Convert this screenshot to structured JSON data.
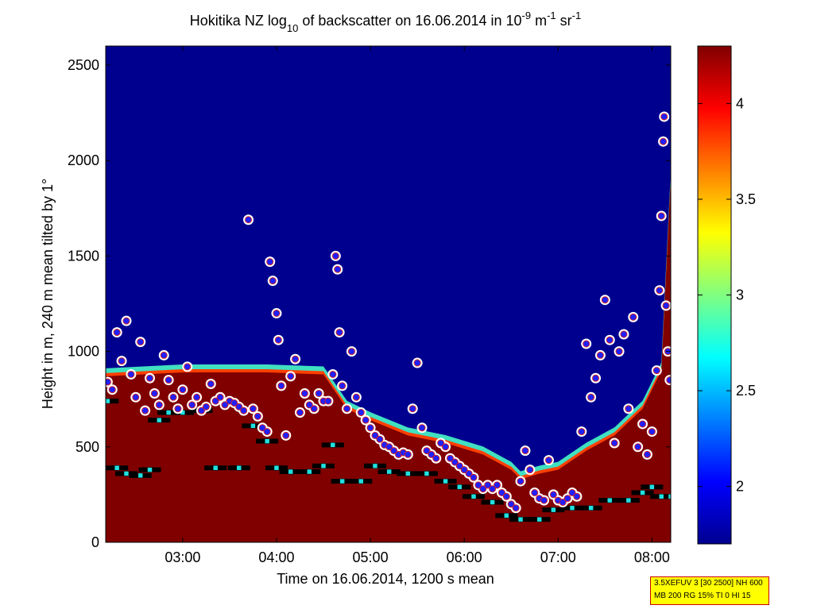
{
  "chart_data": {
    "type": "heatmap",
    "title": {
      "prefix": "Hokitika NZ log",
      "sub": "10",
      "middle": " of backscatter on 16.06.2014 in 10",
      "exp1": "-9",
      "unit_m": " m",
      "exp2": "-1",
      "unit_sr": " sr",
      "exp3": "-1"
    },
    "xlabel": "Time on 16.06.2014, 1200 s mean",
    "ylabel": "Height in m, 240 m mean tilted by 1°",
    "x_ticks": [
      "03:00",
      "04:00",
      "05:00",
      "06:00",
      "07:00",
      "08:00"
    ],
    "x_tick_hours": [
      3,
      4,
      5,
      6,
      7,
      8
    ],
    "xlim_hours": [
      2.18,
      8.2
    ],
    "y_ticks": [
      0,
      500,
      1000,
      1500,
      2000,
      2500
    ],
    "ylim": [
      0,
      2600
    ],
    "colorbar": {
      "ticks": [
        "2",
        "2.5",
        "3",
        "3.5",
        "4"
      ],
      "tick_values": [
        2,
        2.5,
        3,
        3.5,
        4
      ],
      "range": [
        1.7,
        4.3
      ],
      "colormap": "jet"
    },
    "colors": {
      "background": "#00008f",
      "saturated": "#800000",
      "cloud_marker_fill": "#2020ff",
      "cloud_marker_ring": "#ffffff",
      "mixing_layer": "#000000",
      "mixing_marker": "#20e0e0"
    },
    "aerosol_top_m": [
      [
        2.18,
        870
      ],
      [
        3.0,
        890
      ],
      [
        3.9,
        890
      ],
      [
        4.5,
        880
      ],
      [
        4.75,
        700
      ],
      [
        5.0,
        640
      ],
      [
        5.4,
        560
      ],
      [
        5.8,
        520
      ],
      [
        6.2,
        460
      ],
      [
        6.5,
        380
      ],
      [
        6.6,
        330
      ],
      [
        6.8,
        360
      ],
      [
        7.0,
        380
      ],
      [
        7.3,
        480
      ],
      [
        7.6,
        560
      ],
      [
        7.9,
        700
      ],
      [
        8.1,
        900
      ],
      [
        8.2,
        1900
      ]
    ],
    "series": [
      {
        "kind": "cloud_base",
        "points": [
          [
            2.2,
            840
          ],
          [
            2.25,
            800
          ],
          [
            2.3,
            1100
          ],
          [
            2.35,
            950
          ],
          [
            2.4,
            1160
          ],
          [
            2.45,
            880
          ],
          [
            2.5,
            760
          ],
          [
            2.55,
            1050
          ],
          [
            2.6,
            690
          ],
          [
            2.65,
            860
          ],
          [
            2.7,
            780
          ],
          [
            2.75,
            720
          ],
          [
            2.8,
            980
          ],
          [
            2.85,
            850
          ],
          [
            2.9,
            760
          ],
          [
            2.95,
            700
          ],
          [
            3.0,
            800
          ],
          [
            3.05,
            920
          ],
          [
            3.1,
            720
          ],
          [
            3.15,
            760
          ],
          [
            3.2,
            690
          ],
          [
            3.25,
            710
          ],
          [
            3.3,
            830
          ],
          [
            3.35,
            740
          ],
          [
            3.4,
            760
          ],
          [
            3.45,
            720
          ],
          [
            3.5,
            740
          ],
          [
            3.55,
            730
          ],
          [
            3.6,
            710
          ],
          [
            3.65,
            690
          ],
          [
            3.7,
            1690
          ],
          [
            3.75,
            700
          ],
          [
            3.8,
            660
          ],
          [
            3.85,
            600
          ],
          [
            3.9,
            580
          ],
          [
            3.93,
            1470
          ],
          [
            3.96,
            1370
          ],
          [
            4.0,
            1200
          ],
          [
            4.02,
            1060
          ],
          [
            4.05,
            820
          ],
          [
            4.1,
            560
          ],
          [
            4.15,
            870
          ],
          [
            4.2,
            960
          ],
          [
            4.25,
            680
          ],
          [
            4.3,
            780
          ],
          [
            4.35,
            720
          ],
          [
            4.4,
            700
          ],
          [
            4.45,
            780
          ],
          [
            4.5,
            740
          ],
          [
            4.55,
            740
          ],
          [
            4.6,
            880
          ],
          [
            4.63,
            1500
          ],
          [
            4.65,
            1430
          ],
          [
            4.67,
            1100
          ],
          [
            4.7,
            820
          ],
          [
            4.75,
            700
          ],
          [
            4.8,
            1000
          ],
          [
            4.85,
            760
          ],
          [
            4.9,
            680
          ],
          [
            4.95,
            640
          ],
          [
            5.0,
            600
          ],
          [
            5.05,
            560
          ],
          [
            5.1,
            540
          ],
          [
            5.15,
            510
          ],
          [
            5.2,
            500
          ],
          [
            5.25,
            480
          ],
          [
            5.3,
            460
          ],
          [
            5.35,
            470
          ],
          [
            5.4,
            460
          ],
          [
            5.45,
            700
          ],
          [
            5.5,
            940
          ],
          [
            5.55,
            600
          ],
          [
            5.6,
            480
          ],
          [
            5.65,
            460
          ],
          [
            5.7,
            440
          ],
          [
            5.75,
            520
          ],
          [
            5.8,
            500
          ],
          [
            5.85,
            440
          ],
          [
            5.9,
            420
          ],
          [
            5.95,
            400
          ],
          [
            6.0,
            380
          ],
          [
            6.05,
            360
          ],
          [
            6.1,
            340
          ],
          [
            6.15,
            300
          ],
          [
            6.2,
            280
          ],
          [
            6.25,
            300
          ],
          [
            6.3,
            280
          ],
          [
            6.35,
            300
          ],
          [
            6.4,
            260
          ],
          [
            6.45,
            240
          ],
          [
            6.5,
            200
          ],
          [
            6.55,
            180
          ],
          [
            6.6,
            320
          ],
          [
            6.65,
            480
          ],
          [
            6.7,
            380
          ],
          [
            6.75,
            260
          ],
          [
            6.8,
            230
          ],
          [
            6.85,
            220
          ],
          [
            6.9,
            430
          ],
          [
            6.95,
            250
          ],
          [
            7.0,
            220
          ],
          [
            7.05,
            210
          ],
          [
            7.1,
            230
          ],
          [
            7.15,
            260
          ],
          [
            7.2,
            240
          ],
          [
            7.25,
            580
          ],
          [
            7.3,
            1040
          ],
          [
            7.35,
            760
          ],
          [
            7.4,
            860
          ],
          [
            7.45,
            980
          ],
          [
            7.5,
            1270
          ],
          [
            7.55,
            1060
          ],
          [
            7.6,
            520
          ],
          [
            7.65,
            1000
          ],
          [
            7.7,
            1090
          ],
          [
            7.75,
            700
          ],
          [
            7.8,
            1180
          ],
          [
            7.85,
            500
          ],
          [
            7.9,
            620
          ],
          [
            7.95,
            460
          ],
          [
            8.0,
            580
          ],
          [
            8.05,
            900
          ],
          [
            8.08,
            1320
          ],
          [
            8.1,
            1710
          ],
          [
            8.12,
            2100
          ],
          [
            8.13,
            2230
          ],
          [
            8.15,
            1240
          ],
          [
            8.17,
            1000
          ],
          [
            8.19,
            850
          ]
        ]
      },
      {
        "kind": "mixing_layer",
        "points": [
          [
            2.2,
            740
          ],
          [
            2.3,
            390
          ],
          [
            2.4,
            360
          ],
          [
            2.55,
            350
          ],
          [
            2.65,
            380
          ],
          [
            2.75,
            640
          ],
          [
            2.85,
            680
          ],
          [
            3.0,
            680
          ],
          [
            3.2,
            690
          ],
          [
            3.35,
            390
          ],
          [
            3.6,
            390
          ],
          [
            3.75,
            610
          ],
          [
            3.9,
            530
          ],
          [
            4.0,
            390
          ],
          [
            4.15,
            370
          ],
          [
            4.35,
            370
          ],
          [
            4.5,
            400
          ],
          [
            4.6,
            510
          ],
          [
            4.7,
            320
          ],
          [
            4.9,
            320
          ],
          [
            5.05,
            400
          ],
          [
            5.2,
            370
          ],
          [
            5.4,
            360
          ],
          [
            5.6,
            360
          ],
          [
            5.8,
            320
          ],
          [
            5.95,
            290
          ],
          [
            6.1,
            240
          ],
          [
            6.3,
            210
          ],
          [
            6.45,
            140
          ],
          [
            6.6,
            120
          ],
          [
            6.8,
            120
          ],
          [
            6.95,
            170
          ],
          [
            7.15,
            180
          ],
          [
            7.35,
            180
          ],
          [
            7.55,
            220
          ],
          [
            7.75,
            220
          ],
          [
            7.9,
            260
          ],
          [
            8.0,
            290
          ],
          [
            8.1,
            240
          ],
          [
            8.2,
            240
          ]
        ]
      }
    ]
  },
  "info_box": {
    "line1": "3.5XEFUV 3 [30 2500] NH 600",
    "line2": "MB 200 RG 15% TI 0 HI 15"
  }
}
